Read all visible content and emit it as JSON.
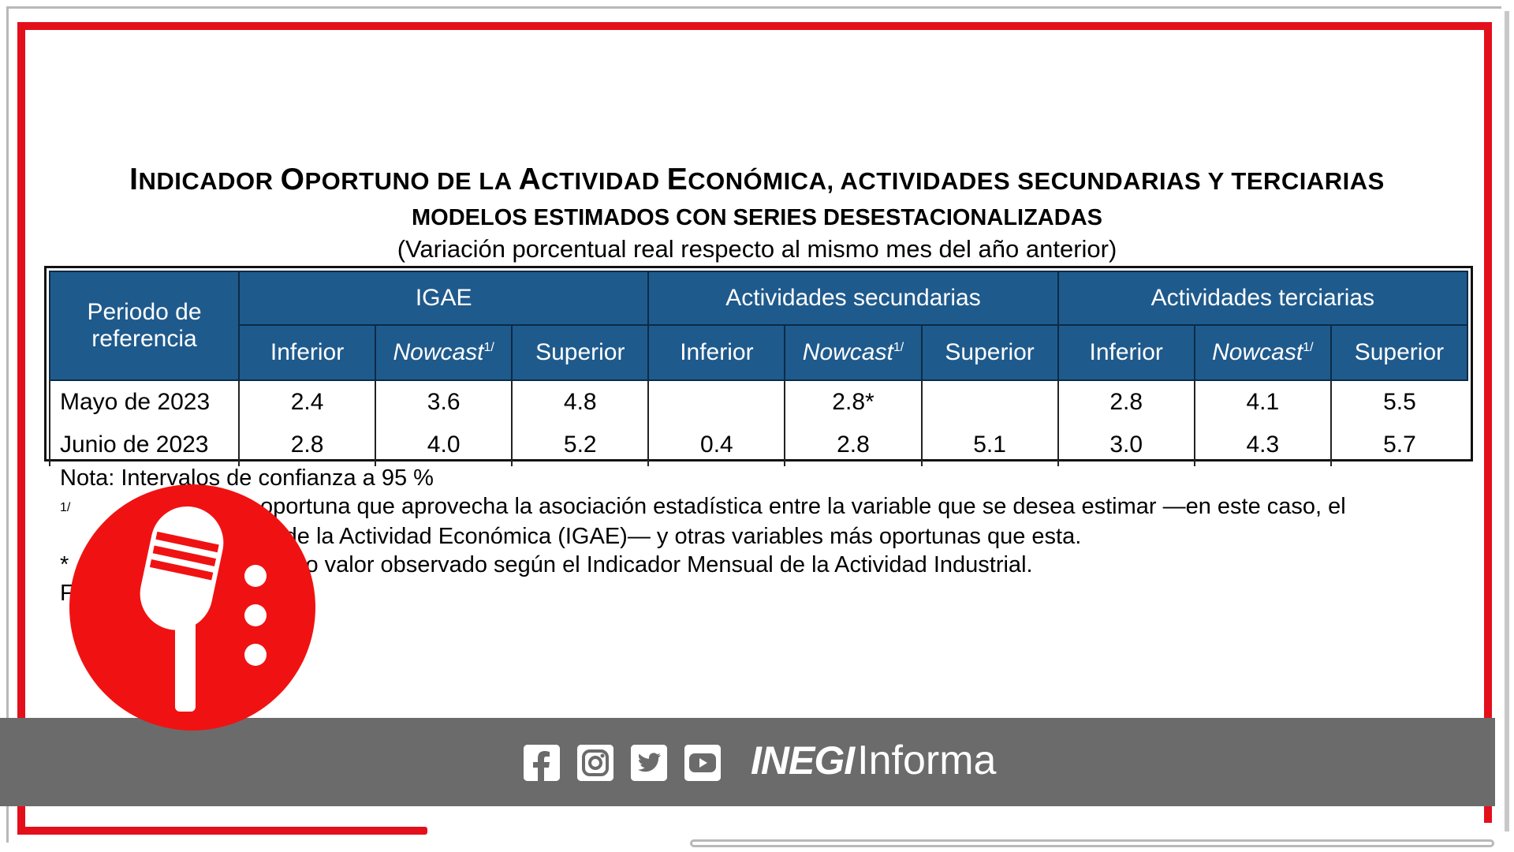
{
  "title": {
    "main_parts": [
      {
        "big": "I",
        "small": "NDICADOR "
      },
      {
        "big": "O",
        "small": "PORTUNO DE LA "
      },
      {
        "big": "A",
        "small": "CTIVIDAD "
      },
      {
        "big": "E",
        "small": "CONÓMICA, ACTIVIDADES SECUNDARIAS Y TERCIARIAS"
      }
    ],
    "subtitle": "MODELOS ESTIMADOS CON SERIES DESESTACIONALIZADAS",
    "unit": "(Variación porcentual real respecto al mismo mes del año anterior)"
  },
  "table": {
    "period_header": "Periodo de referencia",
    "groups": [
      "IGAE",
      "Actividades secundarias",
      "Actividades terciarias"
    ],
    "sub_headers": {
      "inferior": "Inferior",
      "nowcast": "Nowcast",
      "nowcast_sup": "1/",
      "superior": "Superior"
    },
    "rows": [
      {
        "period": "Mayo de 2023",
        "values": [
          "2.4",
          "3.6",
          "4.8",
          "",
          "2.8*",
          "",
          "2.8",
          "4.1",
          "5.5"
        ]
      },
      {
        "period": "Junio de 2023",
        "values": [
          "2.8",
          "4.0",
          "5.2",
          "0.4",
          "2.8",
          "5.1",
          "3.0",
          "4.3",
          "5.7"
        ]
      }
    ]
  },
  "notes": {
    "nota": "Nota:  Intervalos de confianza a 95 %",
    "note1_mark": "1/",
    "note1_text_line1": "oportuna que aprovecha la asociación estadística entre la variable que se desea estimar —en este caso, el",
    "note1_text_line2": "al de la Actividad Económica (IGAE)— y otras variables más oportunas que esta.",
    "note2_mark": "*",
    "note2_text": "mo valor observado según el Indicador Mensual de la Actividad Industrial.",
    "note3_text": "F"
  },
  "footer": {
    "social_icons": [
      "facebook-icon",
      "instagram-icon",
      "twitter-icon",
      "youtube-icon"
    ],
    "brand_bold": "INEGI",
    "brand_light": "Informa"
  },
  "colors": {
    "frame_red": "#e3101b",
    "header_blue": "#1f5a8c",
    "footer_grey": "#6b6b6b",
    "badge_red": "#f01212"
  }
}
